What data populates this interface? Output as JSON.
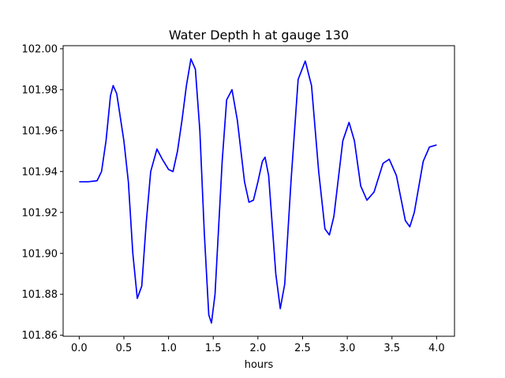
{
  "chart_data": {
    "type": "line",
    "title": "Water Depth h at gauge 130",
    "xlabel": "hours",
    "ylabel": "",
    "xlim": [
      -0.18,
      4.2
    ],
    "ylim": [
      101.8595,
      102.0015
    ],
    "xticks": [
      0.0,
      0.5,
      1.0,
      1.5,
      2.0,
      2.5,
      3.0,
      3.5,
      4.0
    ],
    "xtick_labels": [
      "0.0",
      "0.5",
      "1.0",
      "1.5",
      "2.0",
      "2.5",
      "3.0",
      "3.5",
      "4.0"
    ],
    "yticks": [
      101.86,
      101.88,
      101.9,
      101.92,
      101.94,
      101.96,
      101.98,
      102.0
    ],
    "ytick_labels": [
      "101.86",
      "101.88",
      "101.90",
      "101.92",
      "101.94",
      "101.96",
      "101.98",
      "102.00"
    ],
    "grid": false,
    "series": [
      {
        "color": "#0000ff",
        "points": [
          [
            0.0,
            101.935
          ],
          [
            0.1,
            101.935
          ],
          [
            0.2,
            101.9355
          ],
          [
            0.25,
            101.94
          ],
          [
            0.3,
            101.955
          ],
          [
            0.35,
            101.977
          ],
          [
            0.38,
            101.982
          ],
          [
            0.42,
            101.978
          ],
          [
            0.5,
            101.955
          ],
          [
            0.55,
            101.935
          ],
          [
            0.6,
            101.9
          ],
          [
            0.65,
            101.878
          ],
          [
            0.7,
            101.884
          ],
          [
            0.75,
            101.915
          ],
          [
            0.8,
            101.94
          ],
          [
            0.87,
            101.951
          ],
          [
            0.93,
            101.946
          ],
          [
            1.0,
            101.941
          ],
          [
            1.05,
            101.94
          ],
          [
            1.1,
            101.95
          ],
          [
            1.15,
            101.965
          ],
          [
            1.2,
            101.982
          ],
          [
            1.25,
            101.995
          ],
          [
            1.3,
            101.99
          ],
          [
            1.35,
            101.96
          ],
          [
            1.4,
            101.91
          ],
          [
            1.45,
            101.87
          ],
          [
            1.48,
            101.866
          ],
          [
            1.52,
            101.88
          ],
          [
            1.6,
            101.945
          ],
          [
            1.65,
            101.975
          ],
          [
            1.71,
            101.98
          ],
          [
            1.77,
            101.965
          ],
          [
            1.85,
            101.935
          ],
          [
            1.9,
            101.925
          ],
          [
            1.95,
            101.926
          ],
          [
            2.0,
            101.935
          ],
          [
            2.05,
            101.945
          ],
          [
            2.08,
            101.947
          ],
          [
            2.12,
            101.938
          ],
          [
            2.2,
            101.89
          ],
          [
            2.25,
            101.873
          ],
          [
            2.3,
            101.885
          ],
          [
            2.37,
            101.935
          ],
          [
            2.45,
            101.985
          ],
          [
            2.53,
            101.994
          ],
          [
            2.6,
            101.982
          ],
          [
            2.68,
            101.94
          ],
          [
            2.75,
            101.912
          ],
          [
            2.8,
            101.909
          ],
          [
            2.85,
            101.918
          ],
          [
            2.95,
            101.955
          ],
          [
            3.02,
            101.964
          ],
          [
            3.08,
            101.955
          ],
          [
            3.15,
            101.933
          ],
          [
            3.22,
            101.926
          ],
          [
            3.3,
            101.93
          ],
          [
            3.4,
            101.944
          ],
          [
            3.47,
            101.946
          ],
          [
            3.55,
            101.938
          ],
          [
            3.65,
            101.916
          ],
          [
            3.7,
            101.913
          ],
          [
            3.75,
            101.92
          ],
          [
            3.85,
            101.945
          ],
          [
            3.92,
            101.952
          ],
          [
            4.0,
            101.953
          ]
        ]
      }
    ]
  }
}
